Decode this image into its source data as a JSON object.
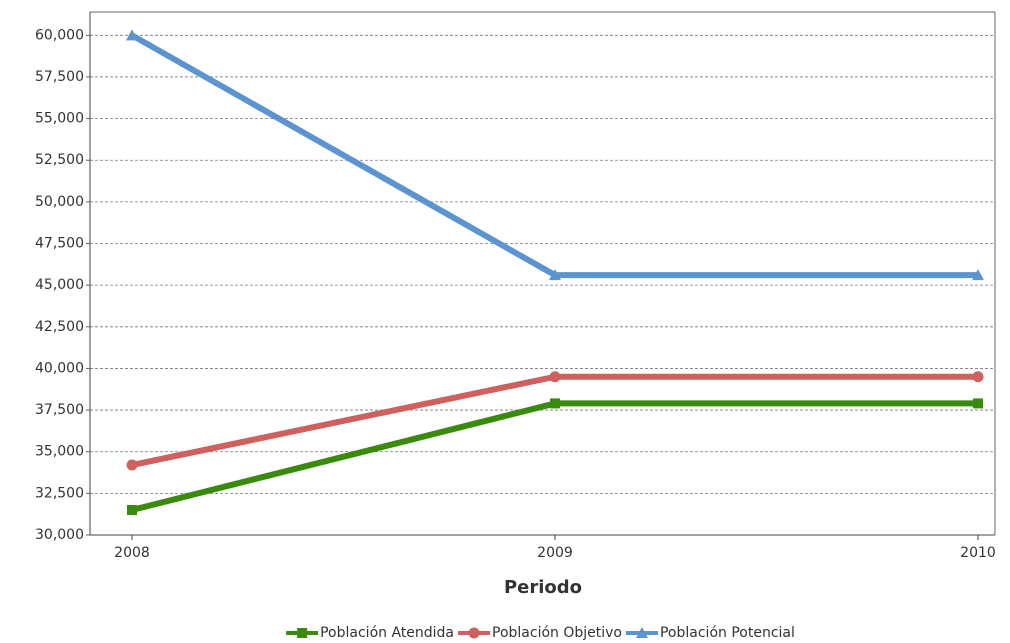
{
  "chart_data": {
    "type": "line",
    "x_label": "Periodo",
    "categories": [
      "2008",
      "2009",
      "2010"
    ],
    "series": [
      {
        "name": "Población Atendida",
        "color": "#3a8a0e",
        "marker": "square",
        "values": [
          31500,
          37900,
          37900
        ]
      },
      {
        "name": "Población Objetivo",
        "color": "#d0605e",
        "marker": "circle",
        "values": [
          34200,
          39500,
          39500
        ]
      },
      {
        "name": "Población Potencial",
        "color": "#5b94cf",
        "marker": "triangle",
        "values": [
          60000,
          45600,
          45600
        ]
      }
    ],
    "ylim": [
      30000,
      61400
    ],
    "yticks": [
      {
        "value": 30000,
        "label": "30,000"
      },
      {
        "value": 32500,
        "label": "32,500"
      },
      {
        "value": 35000,
        "label": "35,000"
      },
      {
        "value": 37500,
        "label": "37,500"
      },
      {
        "value": 40000,
        "label": "40,000"
      },
      {
        "value": 42500,
        "label": "42,500"
      },
      {
        "value": 45000,
        "label": "45,000"
      },
      {
        "value": 47500,
        "label": "47,500"
      },
      {
        "value": 50000,
        "label": "50,000"
      },
      {
        "value": 52500,
        "label": "52,500"
      },
      {
        "value": 55000,
        "label": "55,000"
      },
      {
        "value": 57500,
        "label": "57,500"
      },
      {
        "value": 60000,
        "label": "60,000"
      }
    ],
    "grid": true,
    "legend": "bottom"
  }
}
